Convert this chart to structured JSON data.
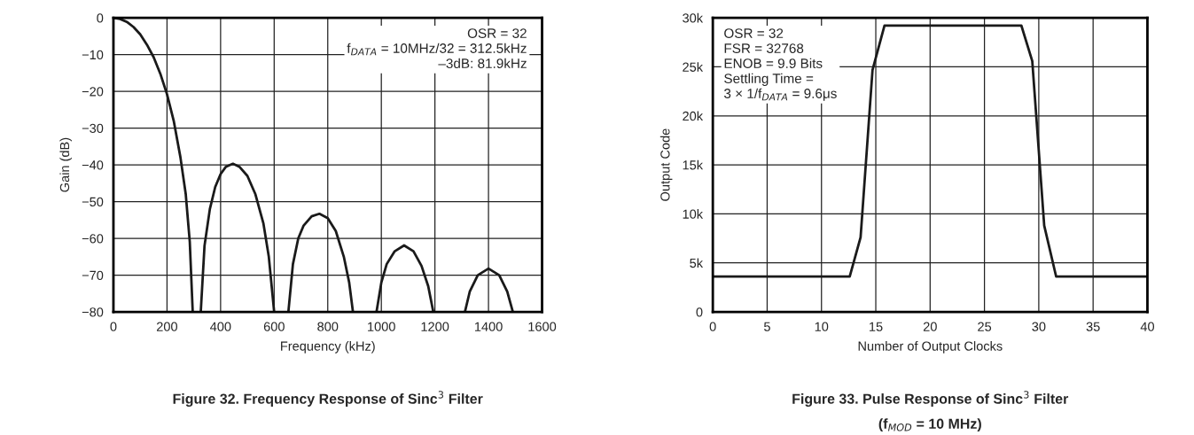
{
  "chart_data": [
    {
      "type": "line",
      "title": "Figure 32. Frequency Response of Sinc$^{3}$ Filter",
      "xlabel": "Frequency (kHz)",
      "ylabel": "Gain (dB)",
      "annotations": [
        "OSR = 32",
        "f$_{DATA}$ = 10MHz/32 = 312.5kHz",
        "–3dB: 81.9kHz"
      ],
      "series": [
        {
          "color": "#1a1a1a",
          "x": [
            0,
            25,
            50,
            75,
            100,
            125,
            150,
            175,
            200,
            225,
            250,
            270,
            285,
            296,
            310,
            326,
            340,
            360,
            380,
            400,
            420,
            446,
            470,
            500,
            530,
            560,
            580,
            600,
            625,
            653,
            670,
            690,
            710,
            740,
            769,
            800,
            830,
            860,
            880,
            894,
            940,
            982,
            1000,
            1020,
            1050,
            1085,
            1120,
            1150,
            1175,
            1194,
            1250,
            1312,
            1330,
            1360,
            1400,
            1440,
            1470,
            1491
          ],
          "values": [
            0,
            -0.3,
            -1.1,
            -2.5,
            -4.5,
            -7.3,
            -10.7,
            -15.2,
            -20.8,
            -28,
            -37.9,
            -48,
            -61,
            -80,
            null,
            -80,
            -62,
            -52,
            -46,
            -42.5,
            -40.5,
            -39.7,
            -40.5,
            -43,
            -48,
            -56,
            -65,
            -80,
            null,
            -80,
            -67,
            -60,
            -56.5,
            -54,
            -53.3,
            -54.5,
            -58,
            -65,
            -72,
            -80,
            null,
            -80,
            -72,
            -67,
            -63.5,
            -61.9,
            -63.5,
            -67.5,
            -73,
            -80,
            null,
            -80,
            -74.5,
            -70,
            -68.2,
            -70,
            -74.5,
            -80
          ]
        }
      ],
      "xlim": [
        0,
        1600
      ],
      "xticks": [
        0,
        200,
        400,
        600,
        800,
        1000,
        1200,
        1400,
        1600
      ],
      "ylim": [
        -80,
        0
      ],
      "yticks": [
        {
          "value": -80,
          "label": "−80"
        },
        {
          "value": -70,
          "label": "−70"
        },
        {
          "value": -60,
          "label": "−60"
        },
        {
          "value": -50,
          "label": "−50"
        },
        {
          "value": -40,
          "label": "−40"
        },
        {
          "value": -30,
          "label": "−30"
        },
        {
          "value": -20,
          "label": "−20"
        },
        {
          "value": -10,
          "label": "−10"
        },
        0
      ],
      "grid": true,
      "line_style": "solid",
      "marker": "none"
    },
    {
      "type": "line",
      "title": "Figure 33. Pulse Response of Sinc$^{3}$ Filter",
      "subtitle": "(f$_{MOD}$ = 10 MHz)",
      "xlabel": "Number of Output Clocks",
      "ylabel": "Output Code",
      "annotations": [
        "OSR = 32",
        "FSR = 32768",
        "ENOB = 9.9 Bits",
        "Settling Time =",
        "3 × 1/f$_{DATA}$ = 9.6μs"
      ],
      "series": [
        {
          "color": "#1a1a1a",
          "x": [
            0,
            12.6,
            13.6,
            14.7,
            15.8,
            28.4,
            29.4,
            30.5,
            31.6,
            40
          ],
          "values": [
            3600,
            3600,
            7600,
            24700,
            29200,
            29200,
            25600,
            8800,
            3600,
            3600
          ]
        }
      ],
      "xlim": [
        0,
        40
      ],
      "xticks": [
        0,
        5,
        10,
        15,
        20,
        25,
        30,
        35,
        40
      ],
      "ylim": [
        0,
        30000
      ],
      "yticks": [
        0,
        {
          "value": 5000,
          "label": "5k"
        },
        {
          "value": 10000,
          "label": "10k"
        },
        {
          "value": 15000,
          "label": "15k"
        },
        {
          "value": 20000,
          "label": "20k"
        },
        {
          "value": 25000,
          "label": "25k"
        },
        {
          "value": 30000,
          "label": "30k"
        }
      ],
      "grid": true,
      "line_style": "solid",
      "marker": "none"
    }
  ]
}
